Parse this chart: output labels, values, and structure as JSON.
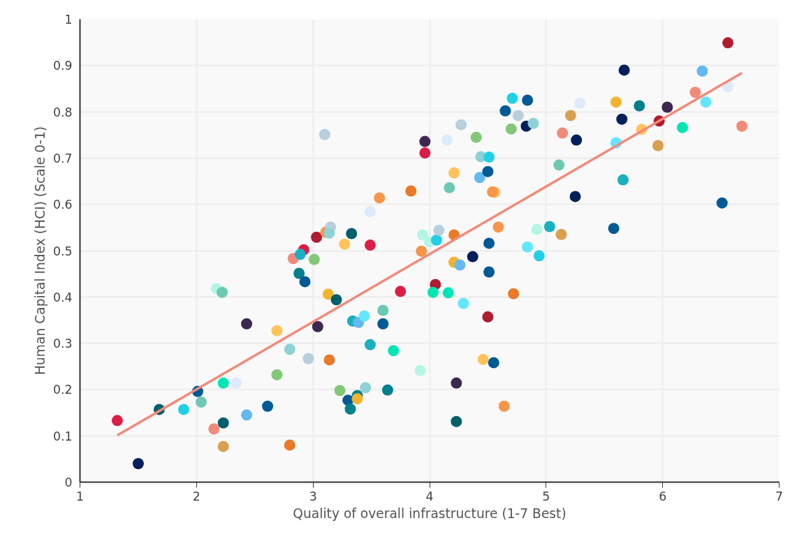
{
  "chart_data": {
    "type": "scatter",
    "xlabel": "Quality of overall infrastructure (1-7 Best)",
    "ylabel": "Human Capital Index (HCI) (Scale 0-1)",
    "xlim": [
      1,
      7
    ],
    "xticks": [
      1,
      2,
      3,
      4,
      5,
      6,
      7
    ],
    "ylim": [
      0,
      1
    ],
    "yticks": [
      0,
      0.1,
      0.2,
      0.3,
      0.4,
      0.5,
      0.6,
      0.7,
      0.8,
      0.9,
      1
    ],
    "grid": true,
    "series": [
      {
        "marker": "circle",
        "x": [
          1.32,
          1.5,
          1.68,
          1.89,
          2.01,
          2.04,
          2.15,
          2.17,
          2.22,
          2.23,
          2.23,
          2.23,
          2.34,
          2.43,
          2.43,
          2.61,
          2.69,
          2.69,
          2.8,
          2.8,
          2.83,
          2.92,
          2.89,
          3.01,
          2.88,
          2.93,
          3.03,
          3.11,
          3.15,
          3.14,
          3.13,
          3.2,
          3.04,
          2.96,
          3.14,
          3.23,
          3.1,
          3.96,
          3.96,
          3.84,
          3.57,
          3.49,
          3.33,
          3.27,
          3.49,
          3.94,
          4.0,
          4.06,
          4.08,
          4.21,
          4.59,
          4.92,
          5.03,
          5.13,
          3.93,
          4.51,
          4.37,
          4.21,
          4.26,
          4.51,
          4.84,
          4.94,
          3.75,
          4.05,
          4.03,
          4.16,
          4.72,
          4.29,
          4.5,
          3.6,
          3.34,
          3.39,
          3.44,
          3.6,
          3.49,
          3.69,
          3.92,
          4.46,
          4.55,
          4.23,
          3.45,
          3.64,
          3.38,
          3.3,
          3.38,
          3.32,
          4.64,
          4.23,
          6.56,
          5.67,
          6.34,
          6.56,
          6.28,
          6.37,
          5.6,
          5.8,
          6.04,
          5.29,
          4.71,
          4.84,
          4.65,
          4.76,
          5.21,
          5.65,
          4.83,
          4.89,
          4.7,
          5.97,
          5.82,
          6.17,
          6.68,
          4.27,
          4.4,
          4.15,
          5.14,
          5.26,
          5.96,
          5.6,
          4.44,
          4.51,
          4.21,
          4.43,
          4.5,
          4.17,
          5.11,
          4.56,
          4.54,
          5.25,
          5.66,
          6.51,
          5.58
        ],
        "values": [
          0.133,
          0.04,
          0.157,
          0.157,
          0.196,
          0.173,
          0.115,
          0.418,
          0.41,
          0.214,
          0.128,
          0.077,
          0.214,
          0.342,
          0.145,
          0.164,
          0.327,
          0.232,
          0.287,
          0.08,
          0.483,
          0.502,
          0.492,
          0.481,
          0.451,
          0.433,
          0.529,
          0.54,
          0.551,
          0.538,
          0.406,
          0.394,
          0.336,
          0.267,
          0.264,
          0.198,
          0.751,
          0.736,
          0.711,
          0.629,
          0.614,
          0.584,
          0.537,
          0.514,
          0.512,
          0.534,
          0.519,
          0.523,
          0.544,
          0.534,
          0.551,
          0.546,
          0.552,
          0.535,
          0.499,
          0.516,
          0.487,
          0.475,
          0.469,
          0.454,
          0.508,
          0.489,
          0.412,
          0.427,
          0.41,
          0.409,
          0.407,
          0.386,
          0.357,
          0.371,
          0.348,
          0.345,
          0.359,
          0.342,
          0.297,
          0.284,
          0.241,
          0.265,
          0.258,
          0.214,
          0.204,
          0.199,
          0.187,
          0.177,
          0.18,
          0.158,
          0.164,
          0.131,
          0.949,
          0.89,
          0.888,
          0.854,
          0.842,
          0.821,
          0.821,
          0.813,
          0.81,
          0.819,
          0.829,
          0.825,
          0.802,
          0.792,
          0.792,
          0.784,
          0.769,
          0.775,
          0.763,
          0.78,
          0.762,
          0.766,
          0.769,
          0.772,
          0.745,
          0.739,
          0.754,
          0.739,
          0.727,
          0.733,
          0.703,
          0.702,
          0.668,
          0.658,
          0.671,
          0.636,
          0.685,
          0.626,
          0.627,
          0.617,
          0.653,
          0.603,
          0.548
        ],
        "colors": [
          "#dc1e46",
          "#00205b",
          "#005f6b",
          "#22d0e6",
          "#005a96",
          "#6ccab4",
          "#f28a7a",
          "#b4f5e4",
          "#6ccab4",
          "#00e6b4",
          "#005f6b",
          "#d9a050",
          "#dceafa",
          "#3c2850",
          "#64b9f0",
          "#005a96",
          "#ffc35a",
          "#82c878",
          "#8ed2d6",
          "#e87a28",
          "#f28a7a",
          "#dc1e46",
          "#1ab0c0",
          "#82c878",
          "#00808c",
          "#005a96",
          "#b01c30",
          "#f5964b",
          "#b8cfdc",
          "#8ed2d6",
          "#f2b430",
          "#005f6b",
          "#3c2850",
          "#b8cfdc",
          "#e87a28",
          "#82c878",
          "#b8cfdc",
          "#3c2850",
          "#dc1e46",
          "#e87a28",
          "#f5964b",
          "#dceafa",
          "#005f6b",
          "#ffc35a",
          "#dc1e46",
          "#b4f5e4",
          "#b4f5e4",
          "#22d0e6",
          "#b8cfdc",
          "#e87a28",
          "#f5964b",
          "#b4f5e4",
          "#1ab0c0",
          "#d9a050",
          "#f5964b",
          "#005a96",
          "#00205b",
          "#f2b430",
          "#64b9f0",
          "#005a96",
          "#64e6ff",
          "#22d0e6",
          "#dc1e46",
          "#b01c30",
          "#00e6b4",
          "#00e6b4",
          "#e87a28",
          "#64e6ff",
          "#b01c30",
          "#6ccab4",
          "#1ab0c0",
          "#64b9f0",
          "#64e6ff",
          "#005a96",
          "#1ab0c0",
          "#00e6b4",
          "#b4f5e4",
          "#ffc35a",
          "#005a96",
          "#3c2850",
          "#8ed2d6",
          "#00808c",
          "#00808c",
          "#005a96",
          "#f2b430",
          "#00808c",
          "#f5964b",
          "#005f6b",
          "#b01c30",
          "#00205b",
          "#64b9f0",
          "#dceafa",
          "#f28a7a",
          "#64e6ff",
          "#f2b430",
          "#00808c",
          "#3c2850",
          "#dceafa",
          "#22d0e6",
          "#005a96",
          "#005a96",
          "#b8cfdc",
          "#d9a050",
          "#00205b",
          "#00205b",
          "#8ed2d6",
          "#82c878",
          "#b01c30",
          "#ffc35a",
          "#00e6b4",
          "#f28a7a",
          "#b8cfdc",
          "#82c878",
          "#dceafa",
          "#f28a7a",
          "#00205b",
          "#d9a050",
          "#64e6ff",
          "#8ed2d6",
          "#22d0e6",
          "#ffc35a",
          "#64b9f0",
          "#005a96",
          "#6ccab4",
          "#6ccab4",
          "#ffc35a",
          "#f5964b",
          "#00205b",
          "#1ab0c0",
          "#005a96",
          "#005a96"
        ]
      },
      {
        "type": "line",
        "x": [
          1.32,
          6.68
        ],
        "values": [
          0.101,
          0.884
        ],
        "color": "#f28a7a"
      }
    ]
  }
}
